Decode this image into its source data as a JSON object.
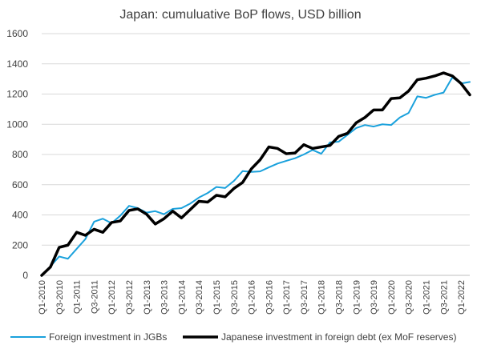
{
  "chart_data": {
    "type": "line",
    "title": "Japan: cumuluative BoP flows, USD billion",
    "xlabel": "",
    "ylabel": "",
    "ylim": [
      0,
      1600
    ],
    "yticks": [
      0,
      200,
      400,
      600,
      800,
      1000,
      1200,
      1400,
      1600
    ],
    "grid": true,
    "legend_position": "bottom",
    "x_tick_labels": [
      "Q1-2010",
      "Q3-2010",
      "Q1-2011",
      "Q3-2011",
      "Q1-2012",
      "Q3-2012",
      "Q1-2013",
      "Q3-2013",
      "Q1-2014",
      "Q3-2014",
      "Q1-2015",
      "Q3-2015",
      "Q1-2016",
      "Q3-2016",
      "Q1-2017",
      "Q3-2017",
      "Q1-2018",
      "Q3-2018",
      "Q1-2019",
      "Q3-2019",
      "Q1-2020",
      "Q3-2020",
      "Q1-2021",
      "Q3-2021",
      "Q1-2022"
    ],
    "x": [
      "Q1-2010",
      "Q2-2010",
      "Q3-2010",
      "Q4-2010",
      "Q1-2011",
      "Q2-2011",
      "Q3-2011",
      "Q4-2011",
      "Q1-2012",
      "Q2-2012",
      "Q3-2012",
      "Q4-2012",
      "Q1-2013",
      "Q2-2013",
      "Q3-2013",
      "Q4-2013",
      "Q1-2014",
      "Q2-2014",
      "Q3-2014",
      "Q4-2014",
      "Q1-2015",
      "Q2-2015",
      "Q3-2015",
      "Q4-2015",
      "Q1-2016",
      "Q2-2016",
      "Q3-2016",
      "Q4-2016",
      "Q1-2017",
      "Q2-2017",
      "Q3-2017",
      "Q4-2017",
      "Q1-2018",
      "Q2-2018",
      "Q3-2018",
      "Q4-2018",
      "Q1-2019",
      "Q2-2019",
      "Q3-2019",
      "Q4-2019",
      "Q1-2020",
      "Q2-2020",
      "Q3-2020",
      "Q4-2020",
      "Q1-2021",
      "Q2-2021",
      "Q3-2021",
      "Q4-2021",
      "Q1-2022",
      "Q2-2022"
    ],
    "series": [
      {
        "name": "Foreign investment in JGBs",
        "color": "#1aa1dc",
        "values": [
          0,
          60,
          125,
          110,
          175,
          240,
          355,
          375,
          345,
          395,
          460,
          445,
          415,
          425,
          405,
          440,
          445,
          475,
          515,
          545,
          585,
          578,
          625,
          690,
          685,
          688,
          715,
          740,
          758,
          775,
          800,
          830,
          805,
          880,
          885,
          930,
          975,
          995,
          985,
          1000,
          995,
          1045,
          1075,
          1185,
          1175,
          1195,
          1210,
          1310,
          1270,
          1280
        ]
      },
      {
        "name": "Japanese investment in foreign debt (ex MoF reserves)",
        "color": "#000000",
        "values": [
          0,
          55,
          185,
          200,
          285,
          265,
          305,
          285,
          350,
          360,
          430,
          440,
          405,
          340,
          375,
          425,
          380,
          435,
          490,
          485,
          530,
          520,
          575,
          615,
          705,
          765,
          850,
          840,
          805,
          810,
          865,
          840,
          850,
          860,
          920,
          940,
          1010,
          1045,
          1095,
          1095,
          1170,
          1175,
          1220,
          1295,
          1305,
          1320,
          1340,
          1320,
          1270,
          1195
        ]
      }
    ]
  }
}
